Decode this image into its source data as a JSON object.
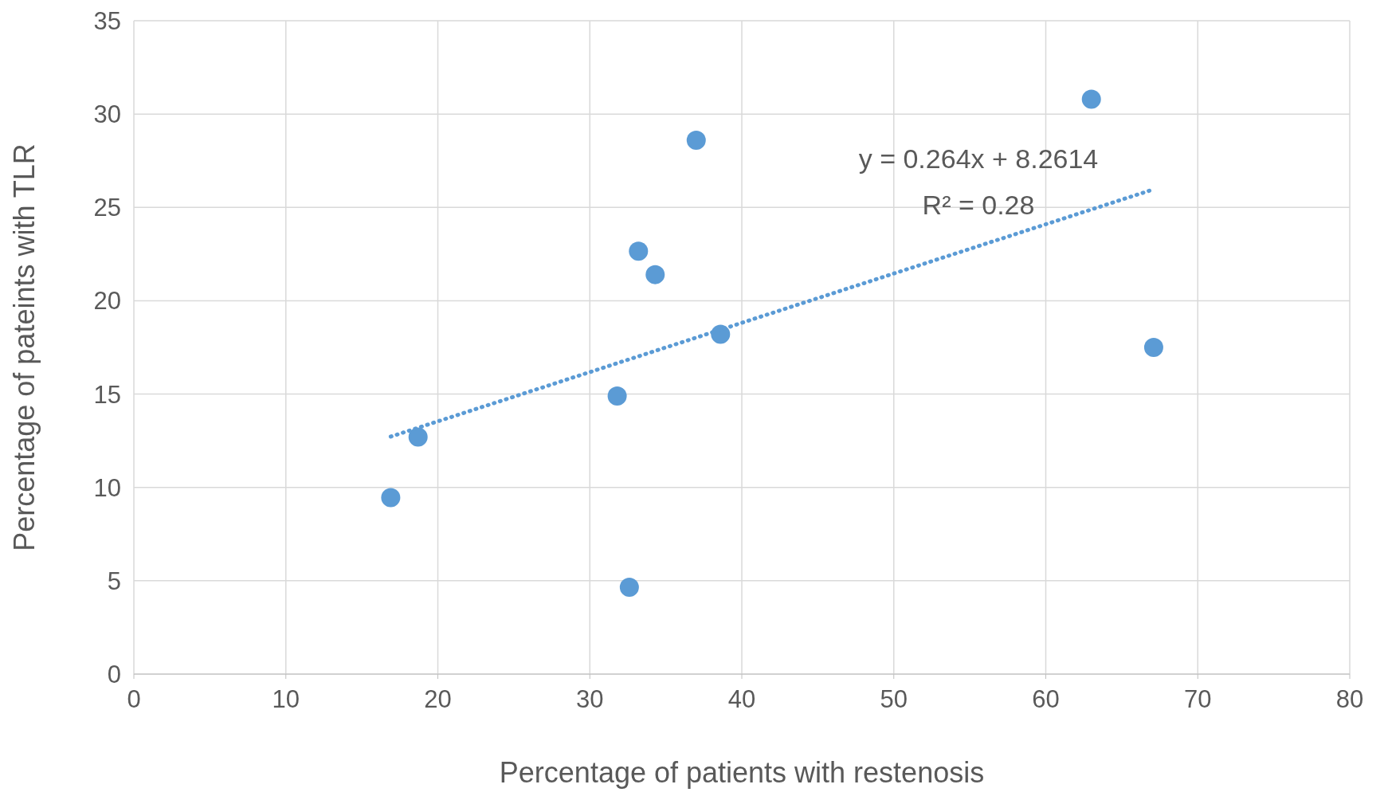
{
  "chart_data": {
    "type": "scatter",
    "xlabel": "Percentage of patients with restenosis",
    "ylabel": "Percentage of pateints with TLR",
    "xlim": [
      0,
      80
    ],
    "xticks": [
      0,
      10,
      20,
      30,
      40,
      50,
      60,
      70,
      80
    ],
    "ylim": [
      0,
      35
    ],
    "yticks": [
      0,
      5,
      10,
      15,
      20,
      25,
      30,
      35
    ],
    "grid": true,
    "series": [
      {
        "color": "#5b9bd5",
        "marker": "circle",
        "x": [
          16.9,
          18.7,
          31.8,
          32.6,
          33.2,
          34.3,
          37.0,
          38.6,
          63.0,
          67.1
        ],
        "values": [
          9.45,
          12.7,
          14.9,
          4.65,
          22.65,
          21.4,
          28.6,
          18.2,
          30.8,
          17.5
        ]
      },
      {
        "type": "line",
        "color": "#5b9bd5",
        "marker": "none",
        "line_style": "dotted",
        "x": [
          16.9,
          67.1
        ],
        "values": [
          12.72,
          25.97
        ]
      }
    ],
    "annotations": [
      "y = 0.264x + 8.2614",
      "R² = 0.28"
    ]
  }
}
